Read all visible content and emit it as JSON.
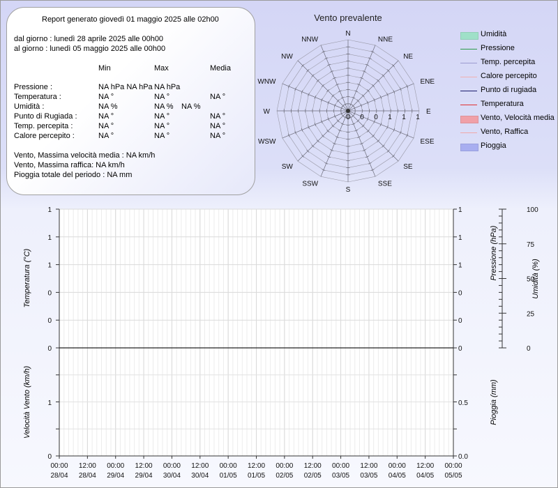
{
  "summary": {
    "title": "Report generato giovedì 01 maggio 2025 alle 02h00",
    "from": "dal giorno : lunedì 28 aprile 2025 alle 00h00",
    "to": "al giorno : lunedì 05 maggio 2025 alle 00h00",
    "headers": {
      "min": "Min",
      "max": "Max",
      "avg": "Media"
    },
    "rows": [
      {
        "label": "Pressione :",
        "min": "NA hPa NA hPa",
        "max": "NA hPa",
        "avg": ""
      },
      {
        "label": "Temperatura :",
        "min": "NA °",
        "max": "NA °",
        "avg": "NA °"
      },
      {
        "label": "Umidità :",
        "min": "NA %",
        "max": "NA %",
        "avg": "NA %"
      },
      {
        "label": "Punto di Rugiada :",
        "min": "NA °",
        "max": "NA °",
        "avg": "NA °"
      },
      {
        "label": "Temp. percepita :",
        "min": "NA °",
        "max": "NA °",
        "avg": "NA °"
      },
      {
        "label": "Calore percepito :",
        "min": "NA °",
        "max": "NA °",
        "avg": "NA °"
      }
    ],
    "wind_avg": "Vento, Massima velocità media : NA km/h",
    "wind_gust": "Vento, Massima raffica: NA km/h",
    "rain_total": "Pioggia totale del periodo : NA mm"
  },
  "legend": [
    {
      "label": "Umidità",
      "kind": "fill",
      "color": "#9fe0c8"
    },
    {
      "label": "Pressione",
      "kind": "line",
      "color": "#2a9a48"
    },
    {
      "label": "Temp. percepita",
      "kind": "line",
      "color": "#9a9ad0"
    },
    {
      "label": "Calore percepito",
      "kind": "line",
      "color": "#f0b0b0"
    },
    {
      "label": "Punto di rugiada",
      "kind": "line",
      "color": "#1a1a6e"
    },
    {
      "label": "Temperatura",
      "kind": "line",
      "color": "#e03030"
    },
    {
      "label": "Vento, Velocità media",
      "kind": "fill",
      "color": "#f0a0a8"
    },
    {
      "label": "Vento, Raffica",
      "kind": "line",
      "color": "#f0a8a8"
    },
    {
      "label": "Pioggia",
      "kind": "fill",
      "color": "#a8aef0"
    }
  ],
  "chart_data": [
    {
      "type": "radar",
      "title": "Vento prevalente",
      "directions": [
        "N",
        "NNE",
        "NE",
        "ENE",
        "E",
        "ESE",
        "SE",
        "SSE",
        "S",
        "SSW",
        "SW",
        "WSW",
        "W",
        "WNW",
        "NW",
        "NNW"
      ],
      "values": [
        0,
        0,
        0,
        0,
        0,
        0,
        0,
        0,
        0,
        0,
        0,
        0,
        0,
        0,
        0,
        0
      ],
      "scale_labels": [
        "0",
        "0",
        "0",
        "1",
        "1",
        "1"
      ]
    },
    {
      "type": "line",
      "title": "",
      "x_ticks": [
        [
          "00:00",
          "28/04"
        ],
        [
          "12:00",
          "28/04"
        ],
        [
          "00:00",
          "29/04"
        ],
        [
          "12:00",
          "29/04"
        ],
        [
          "00:00",
          "30/04"
        ],
        [
          "12:00",
          "30/04"
        ],
        [
          "00:00",
          "01/05"
        ],
        [
          "12:00",
          "01/05"
        ],
        [
          "00:00",
          "02/05"
        ],
        [
          "12:00",
          "02/05"
        ],
        [
          "00:00",
          "03/05"
        ],
        [
          "12:00",
          "03/05"
        ],
        [
          "00:00",
          "04/05"
        ],
        [
          "12:00",
          "04/05"
        ],
        [
          "00:00",
          "05/05"
        ]
      ],
      "upper": {
        "ylabel_left": "Temperatura (°C)",
        "ylabel_right1": "Pressione (hPa)",
        "ylabel_right2": "Umidità (%)",
        "left_ticks": [
          "1",
          "1",
          "1",
          "0",
          "0",
          "0"
        ],
        "right1_ticks": [
          "1",
          "1",
          "1",
          "0",
          "0",
          "0"
        ],
        "right2_ticks": [
          "100",
          "75",
          "50",
          "25",
          "0"
        ],
        "series": []
      },
      "lower": {
        "ylabel_left": "Velocità Vento (km/h)",
        "ylabel_right": "Pioggia (mm)",
        "left_ticks": [
          "1",
          "0"
        ],
        "right_ticks": [
          "0.5",
          "0.0"
        ],
        "series": []
      }
    }
  ]
}
